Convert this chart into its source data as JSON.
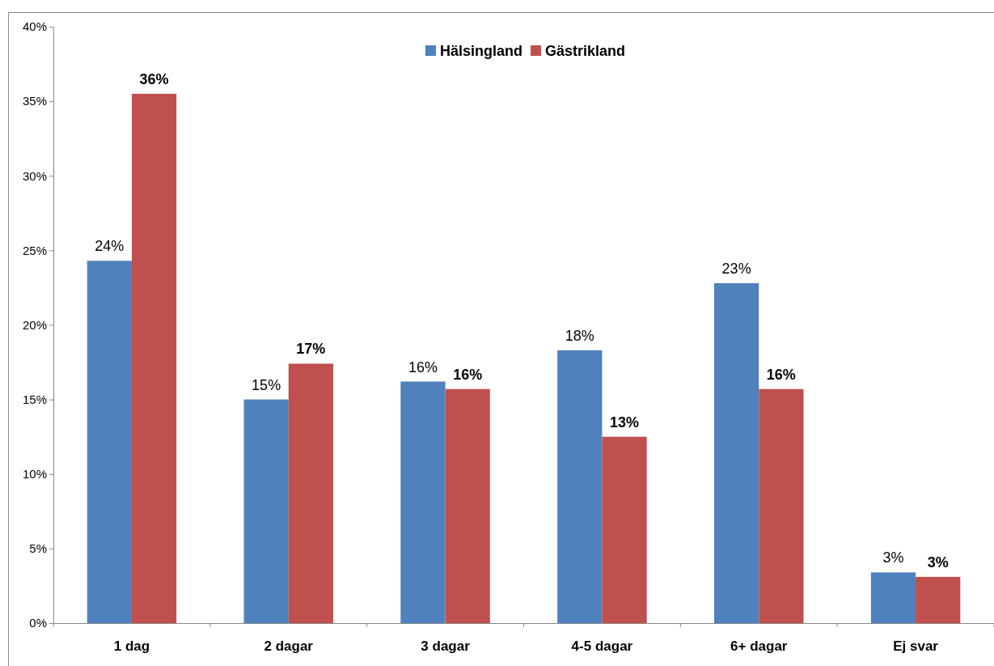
{
  "chart_data": {
    "type": "bar",
    "categories": [
      "1 dag",
      "2 dagar",
      "3 dagar",
      "4-5 dagar",
      "6+ dagar",
      "Ej svar"
    ],
    "series": [
      {
        "name": "Hälsingland",
        "color": "#4f81bd",
        "values": [
          24.3,
          15.0,
          16.2,
          18.3,
          22.8,
          3.4
        ],
        "value_labels": [
          "24%",
          "15%",
          "16%",
          "18%",
          "23%",
          "3%"
        ]
      },
      {
        "name": "Gästrikland",
        "color": "#c0504d",
        "values": [
          35.5,
          17.4,
          15.7,
          12.5,
          15.7,
          3.1
        ],
        "value_labels": [
          "36%",
          "17%",
          "16%",
          "13%",
          "16%",
          "3%"
        ]
      }
    ],
    "ylim": [
      0,
      40
    ],
    "yticks": [
      {
        "value": 0,
        "label": "0%"
      },
      {
        "value": 5,
        "label": "5%"
      },
      {
        "value": 10,
        "label": "10%"
      },
      {
        "value": 15,
        "label": "15%"
      },
      {
        "value": 20,
        "label": "20%"
      },
      {
        "value": 25,
        "label": "25%"
      },
      {
        "value": 30,
        "label": "30%"
      },
      {
        "value": 35,
        "label": "35%"
      },
      {
        "value": 40,
        "label": "40%"
      }
    ],
    "grid": false,
    "legend": "top"
  }
}
